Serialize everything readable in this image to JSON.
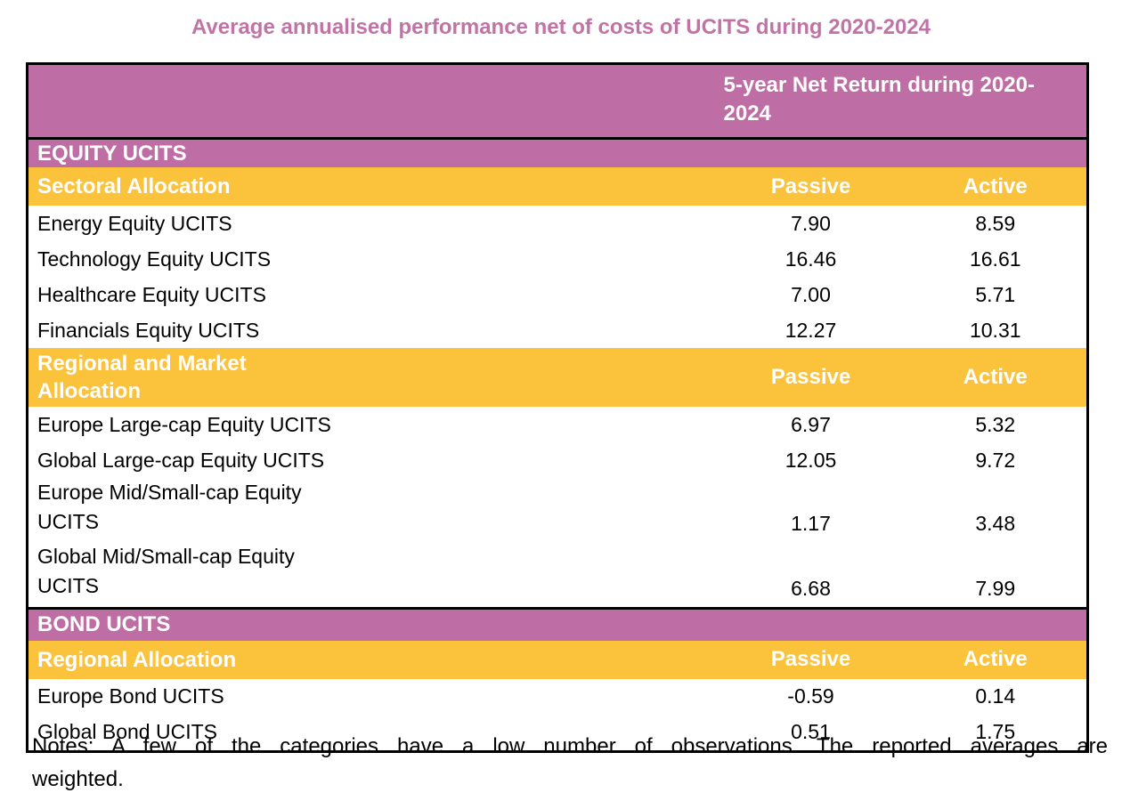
{
  "title": "Average annualised performance net of costs of UCITS during 2020-2024",
  "colors": {
    "pink": "#BE6EA5",
    "orange": "#FBC23C",
    "title-pink": "#C173A7",
    "header-text": "#FFFFFF",
    "body-text": "#000000"
  },
  "table": {
    "header_label": "5-year Net Return during 2020-\n2024",
    "sections": [
      {
        "name": "EQUITY UCITS",
        "groups": [
          {
            "label": "Sectoral Allocation",
            "col_passive": "Passive",
            "col_active": "Active",
            "rows": [
              {
                "name": "Energy Equity UCITS",
                "passive": "7.90",
                "active": "8.59"
              },
              {
                "name": "Technology Equity UCITS",
                "passive": "16.46",
                "active": "16.61"
              },
              {
                "name": "Healthcare Equity UCITS",
                "passive": "7.00",
                "active": "5.71"
              },
              {
                "name": "Financials Equity UCITS",
                "passive": "12.27",
                "active": "10.31"
              }
            ]
          },
          {
            "label": "Regional and Market\nAllocation",
            "col_passive": "Passive",
            "col_active": "Active",
            "rows": [
              {
                "name": "Europe Large-cap Equity UCITS",
                "passive": "6.97",
                "active": "5.32"
              },
              {
                "name": "Global Large-cap Equity UCITS",
                "passive": "12.05",
                "active": "9.72"
              },
              {
                "name": "Europe Mid/Small-cap Equity\nUCITS",
                "passive": "1.17",
                "active": "3.48"
              },
              {
                "name": "Global Mid/Small-cap Equity\nUCITS",
                "passive": "6.68",
                "active": "7.99"
              }
            ]
          }
        ]
      },
      {
        "name": "BOND UCITS",
        "groups": [
          {
            "label": "Regional Allocation",
            "col_passive": "Passive",
            "col_active": "Active",
            "rows": [
              {
                "name": "Europe Bond UCITS",
                "passive": "-0.59",
                "active": "0.14"
              },
              {
                "name": "Global Bond UCITS",
                "passive": "0.51",
                "active": "1.75"
              }
            ]
          }
        ]
      }
    ]
  },
  "notes": {
    "line1": "Notes: A few of the categories have a low number of observations. The reported averages are",
    "line2": "weighted."
  }
}
